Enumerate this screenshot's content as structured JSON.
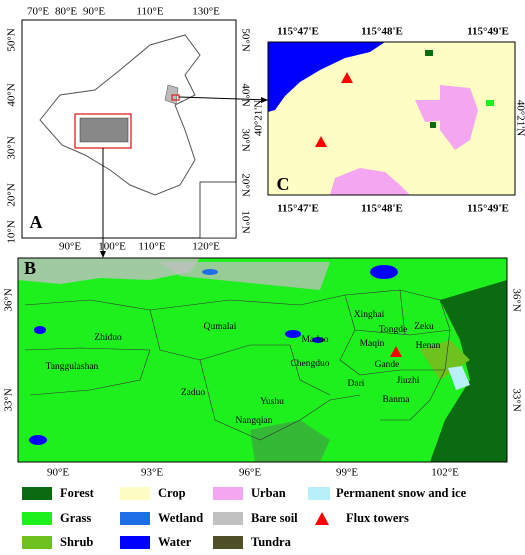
{
  "panels": {
    "a": {
      "label": "A",
      "top_ticks": [
        "70°E",
        "80°E",
        "90°E",
        "110°E",
        "130°E"
      ],
      "bottom_ticks": [
        "90°E",
        "100°E",
        "110°E",
        "120°E"
      ],
      "left_ticks": [
        "50°N",
        "40°N",
        "30°N",
        "20°N",
        "10°N"
      ],
      "right_ticks": [
        "50°N",
        "40°N",
        "30°N",
        "20°N",
        "10°N"
      ]
    },
    "c": {
      "label": "C",
      "top_ticks": [
        "115°47'E",
        "115°48'E",
        "115°49'E"
      ],
      "bottom_ticks": [
        "115°47'E",
        "115°48'E",
        "115°49'E"
      ],
      "left_ticks": [
        "40°21'N"
      ],
      "right_ticks": [
        "40°21'N"
      ]
    },
    "b": {
      "label": "B",
      "left_ticks": [
        "36°N",
        "33°N"
      ],
      "right_ticks": [
        "36°N",
        "33°N"
      ],
      "bottom_ticks": [
        "90°E",
        "93°E",
        "96°E",
        "99°E",
        "102°E"
      ],
      "places": [
        "Xinghai",
        "Tongde",
        "Zeku",
        "Zhiduo",
        "Qumalai",
        "Maduo",
        "Maqin",
        "Henan",
        "Chengduo",
        "Gande",
        "Tanggulashan",
        "Dari",
        "Jiuzhi",
        "Zaduo",
        "Yushu",
        "Banma",
        "Nangqian"
      ]
    }
  },
  "legend": [
    {
      "name": "Forest",
      "color": "#0b6b10"
    },
    {
      "name": "Grass",
      "color": "#1ef01e"
    },
    {
      "name": "Shrub",
      "color": "#6ec21e"
    },
    {
      "name": "Crop",
      "color": "#fdfdc4"
    },
    {
      "name": "Wetland",
      "color": "#1e6ee6"
    },
    {
      "name": "Water",
      "color": "#0000ff"
    },
    {
      "name": "Urban",
      "color": "#f4a6f0"
    },
    {
      "name": "Bare soil",
      "color": "#c0c0c0"
    },
    {
      "name": "Tundra",
      "color": "#505028"
    },
    {
      "name": "Permanent snow and ice",
      "color": "#b8f0fa"
    },
    {
      "name": "Flux towers",
      "color": "#ff0000"
    }
  ]
}
